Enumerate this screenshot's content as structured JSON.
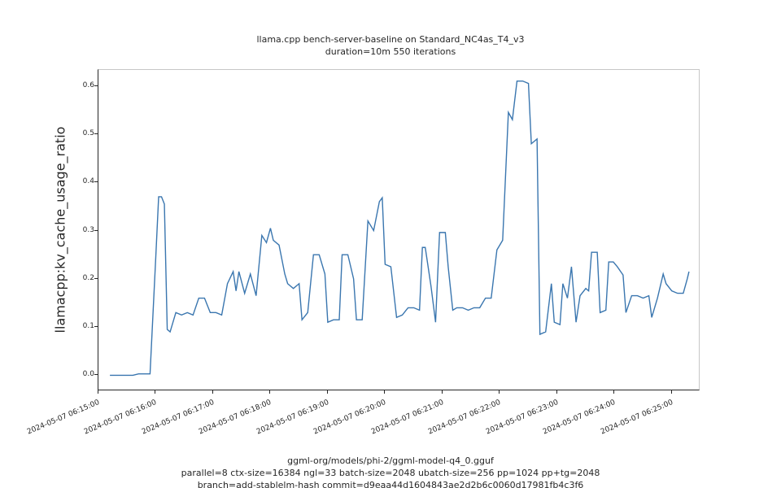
{
  "title_line1": "llama.cpp bench-server-baseline on Standard_NC4as_T4_v3",
  "title_line2": "duration=10m 550 iterations",
  "ylabel": "llamacpp:kv_cache_usage_ratio",
  "xlabel_line1": "ggml-org/models/phi-2/ggml-model-q4_0.gguf",
  "xlabel_line2": "parallel=8 ctx-size=16384 ngl=33 batch-size=2048 ubatch-size=256 pp=1024 pp+tg=2048",
  "xlabel_line3": "branch=add-stablelm-hash commit=d9eaa44d1604843ae2d2b6c0060d17981fb4c3f6",
  "chart": {
    "type": "line",
    "background_color": "#ffffff",
    "spine_color_main": "#262626",
    "spine_color_secondary": "#c7c7c7",
    "grid": false,
    "line_color": "#3a76af",
    "line_width": 1.4,
    "ylim": [
      -0.033,
      0.633
    ],
    "ytick_step": 0.1,
    "yticks": [
      "0.0",
      "0.1",
      "0.2",
      "0.3",
      "0.4",
      "0.5",
      "0.6"
    ],
    "xticks": [
      "2024-05-07 06:15:00",
      "2024-05-07 06:16:00",
      "2024-05-07 06:17:00",
      "2024-05-07 06:18:00",
      "2024-05-07 06:19:00",
      "2024-05-07 06:20:00",
      "2024-05-07 06:21:00",
      "2024-05-07 06:22:00",
      "2024-05-07 06:23:00",
      "2024-05-07 06:24:00",
      "2024-05-07 06:25:00"
    ],
    "x_range": [
      0,
      10.5
    ],
    "title_fontsize": 11,
    "label_fontsize": 16,
    "tick_fontsize": 9,
    "series": [
      {
        "x": 0.2,
        "y": 0.0
      },
      {
        "x": 0.3,
        "y": 0.0
      },
      {
        "x": 0.4,
        "y": 0.0
      },
      {
        "x": 0.5,
        "y": 0.0
      },
      {
        "x": 0.6,
        "y": 0.0
      },
      {
        "x": 0.7,
        "y": 0.003
      },
      {
        "x": 0.8,
        "y": 0.003
      },
      {
        "x": 0.9,
        "y": 0.003
      },
      {
        "x": 1.0,
        "y": 0.245
      },
      {
        "x": 1.05,
        "y": 0.37
      },
      {
        "x": 1.1,
        "y": 0.37
      },
      {
        "x": 1.15,
        "y": 0.355
      },
      {
        "x": 1.2,
        "y": 0.095
      },
      {
        "x": 1.25,
        "y": 0.09
      },
      {
        "x": 1.35,
        "y": 0.13
      },
      {
        "x": 1.45,
        "y": 0.125
      },
      {
        "x": 1.55,
        "y": 0.13
      },
      {
        "x": 1.65,
        "y": 0.125
      },
      {
        "x": 1.75,
        "y": 0.16
      },
      {
        "x": 1.85,
        "y": 0.16
      },
      {
        "x": 1.95,
        "y": 0.13
      },
      {
        "x": 2.05,
        "y": 0.13
      },
      {
        "x": 2.15,
        "y": 0.125
      },
      {
        "x": 2.25,
        "y": 0.19
      },
      {
        "x": 2.35,
        "y": 0.215
      },
      {
        "x": 2.4,
        "y": 0.175
      },
      {
        "x": 2.45,
        "y": 0.215
      },
      {
        "x": 2.55,
        "y": 0.17
      },
      {
        "x": 2.65,
        "y": 0.21
      },
      {
        "x": 2.75,
        "y": 0.165
      },
      {
        "x": 2.85,
        "y": 0.29
      },
      {
        "x": 2.93,
        "y": 0.275
      },
      {
        "x": 3.0,
        "y": 0.305
      },
      {
        "x": 3.05,
        "y": 0.28
      },
      {
        "x": 3.15,
        "y": 0.27
      },
      {
        "x": 3.25,
        "y": 0.21
      },
      {
        "x": 3.3,
        "y": 0.19
      },
      {
        "x": 3.4,
        "y": 0.18
      },
      {
        "x": 3.5,
        "y": 0.19
      },
      {
        "x": 3.55,
        "y": 0.115
      },
      {
        "x": 3.65,
        "y": 0.13
      },
      {
        "x": 3.75,
        "y": 0.25
      },
      {
        "x": 3.85,
        "y": 0.25
      },
      {
        "x": 3.95,
        "y": 0.21
      },
      {
        "x": 4.0,
        "y": 0.11
      },
      {
        "x": 4.1,
        "y": 0.115
      },
      {
        "x": 4.2,
        "y": 0.115
      },
      {
        "x": 4.25,
        "y": 0.25
      },
      {
        "x": 4.35,
        "y": 0.25
      },
      {
        "x": 4.45,
        "y": 0.2
      },
      {
        "x": 4.5,
        "y": 0.115
      },
      {
        "x": 4.6,
        "y": 0.115
      },
      {
        "x": 4.7,
        "y": 0.32
      },
      {
        "x": 4.8,
        "y": 0.3
      },
      {
        "x": 4.9,
        "y": 0.36
      },
      {
        "x": 4.95,
        "y": 0.368
      },
      {
        "x": 5.0,
        "y": 0.23
      },
      {
        "x": 5.1,
        "y": 0.225
      },
      {
        "x": 5.2,
        "y": 0.12
      },
      {
        "x": 5.3,
        "y": 0.125
      },
      {
        "x": 5.4,
        "y": 0.14
      },
      {
        "x": 5.5,
        "y": 0.14
      },
      {
        "x": 5.6,
        "y": 0.135
      },
      {
        "x": 5.65,
        "y": 0.265
      },
      {
        "x": 5.7,
        "y": 0.265
      },
      {
        "x": 5.8,
        "y": 0.185
      },
      {
        "x": 5.88,
        "y": 0.11
      },
      {
        "x": 5.95,
        "y": 0.296
      },
      {
        "x": 6.05,
        "y": 0.296
      },
      {
        "x": 6.1,
        "y": 0.225
      },
      {
        "x": 6.18,
        "y": 0.135
      },
      {
        "x": 6.25,
        "y": 0.14
      },
      {
        "x": 6.35,
        "y": 0.14
      },
      {
        "x": 6.45,
        "y": 0.135
      },
      {
        "x": 6.55,
        "y": 0.14
      },
      {
        "x": 6.65,
        "y": 0.14
      },
      {
        "x": 6.75,
        "y": 0.16
      },
      {
        "x": 6.85,
        "y": 0.16
      },
      {
        "x": 6.95,
        "y": 0.26
      },
      {
        "x": 7.05,
        "y": 0.28
      },
      {
        "x": 7.15,
        "y": 0.545
      },
      {
        "x": 7.22,
        "y": 0.53
      },
      {
        "x": 7.3,
        "y": 0.61
      },
      {
        "x": 7.4,
        "y": 0.61
      },
      {
        "x": 7.5,
        "y": 0.605
      },
      {
        "x": 7.55,
        "y": 0.48
      },
      {
        "x": 7.65,
        "y": 0.49
      },
      {
        "x": 7.7,
        "y": 0.085
      },
      {
        "x": 7.8,
        "y": 0.09
      },
      {
        "x": 7.9,
        "y": 0.19
      },
      {
        "x": 7.95,
        "y": 0.11
      },
      {
        "x": 8.05,
        "y": 0.105
      },
      {
        "x": 8.1,
        "y": 0.19
      },
      {
        "x": 8.18,
        "y": 0.16
      },
      {
        "x": 8.25,
        "y": 0.225
      },
      {
        "x": 8.33,
        "y": 0.11
      },
      {
        "x": 8.4,
        "y": 0.165
      },
      {
        "x": 8.5,
        "y": 0.18
      },
      {
        "x": 8.55,
        "y": 0.175
      },
      {
        "x": 8.6,
        "y": 0.255
      },
      {
        "x": 8.7,
        "y": 0.255
      },
      {
        "x": 8.75,
        "y": 0.13
      },
      {
        "x": 8.85,
        "y": 0.135
      },
      {
        "x": 8.9,
        "y": 0.235
      },
      {
        "x": 8.98,
        "y": 0.235
      },
      {
        "x": 9.05,
        "y": 0.225
      },
      {
        "x": 9.15,
        "y": 0.208
      },
      {
        "x": 9.2,
        "y": 0.13
      },
      {
        "x": 9.3,
        "y": 0.165
      },
      {
        "x": 9.4,
        "y": 0.165
      },
      {
        "x": 9.5,
        "y": 0.16
      },
      {
        "x": 9.6,
        "y": 0.165
      },
      {
        "x": 9.65,
        "y": 0.12
      },
      {
        "x": 9.75,
        "y": 0.16
      },
      {
        "x": 9.85,
        "y": 0.21
      },
      {
        "x": 9.9,
        "y": 0.19
      },
      {
        "x": 10.0,
        "y": 0.175
      },
      {
        "x": 10.1,
        "y": 0.17
      },
      {
        "x": 10.2,
        "y": 0.17
      },
      {
        "x": 10.27,
        "y": 0.2
      },
      {
        "x": 10.3,
        "y": 0.215
      }
    ]
  }
}
